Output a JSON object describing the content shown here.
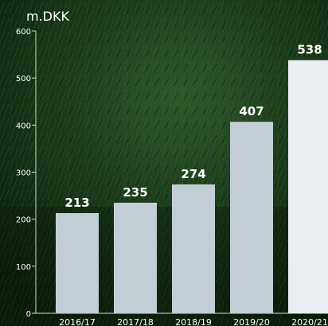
{
  "chart_data": {
    "type": "bar",
    "unit_label": "m.DKK",
    "categories": [
      "2016/17",
      "2017/18",
      "2018/19",
      "2019/20",
      "2020/21"
    ],
    "values": [
      213,
      235,
      274,
      407,
      538
    ],
    "data_labels": [
      "213",
      "235",
      "274",
      "407",
      "538"
    ],
    "ylim": [
      0,
      600
    ],
    "yticks": [
      "0",
      "100",
      "200",
      "300",
      "400",
      "500",
      "600"
    ],
    "grid": false,
    "colors": {
      "bar": "#c3cdd6",
      "bar_highlight": "#e9eef2",
      "text": "#ffffff",
      "axis": "#cfd8cf",
      "background": "#0f2a12"
    }
  }
}
